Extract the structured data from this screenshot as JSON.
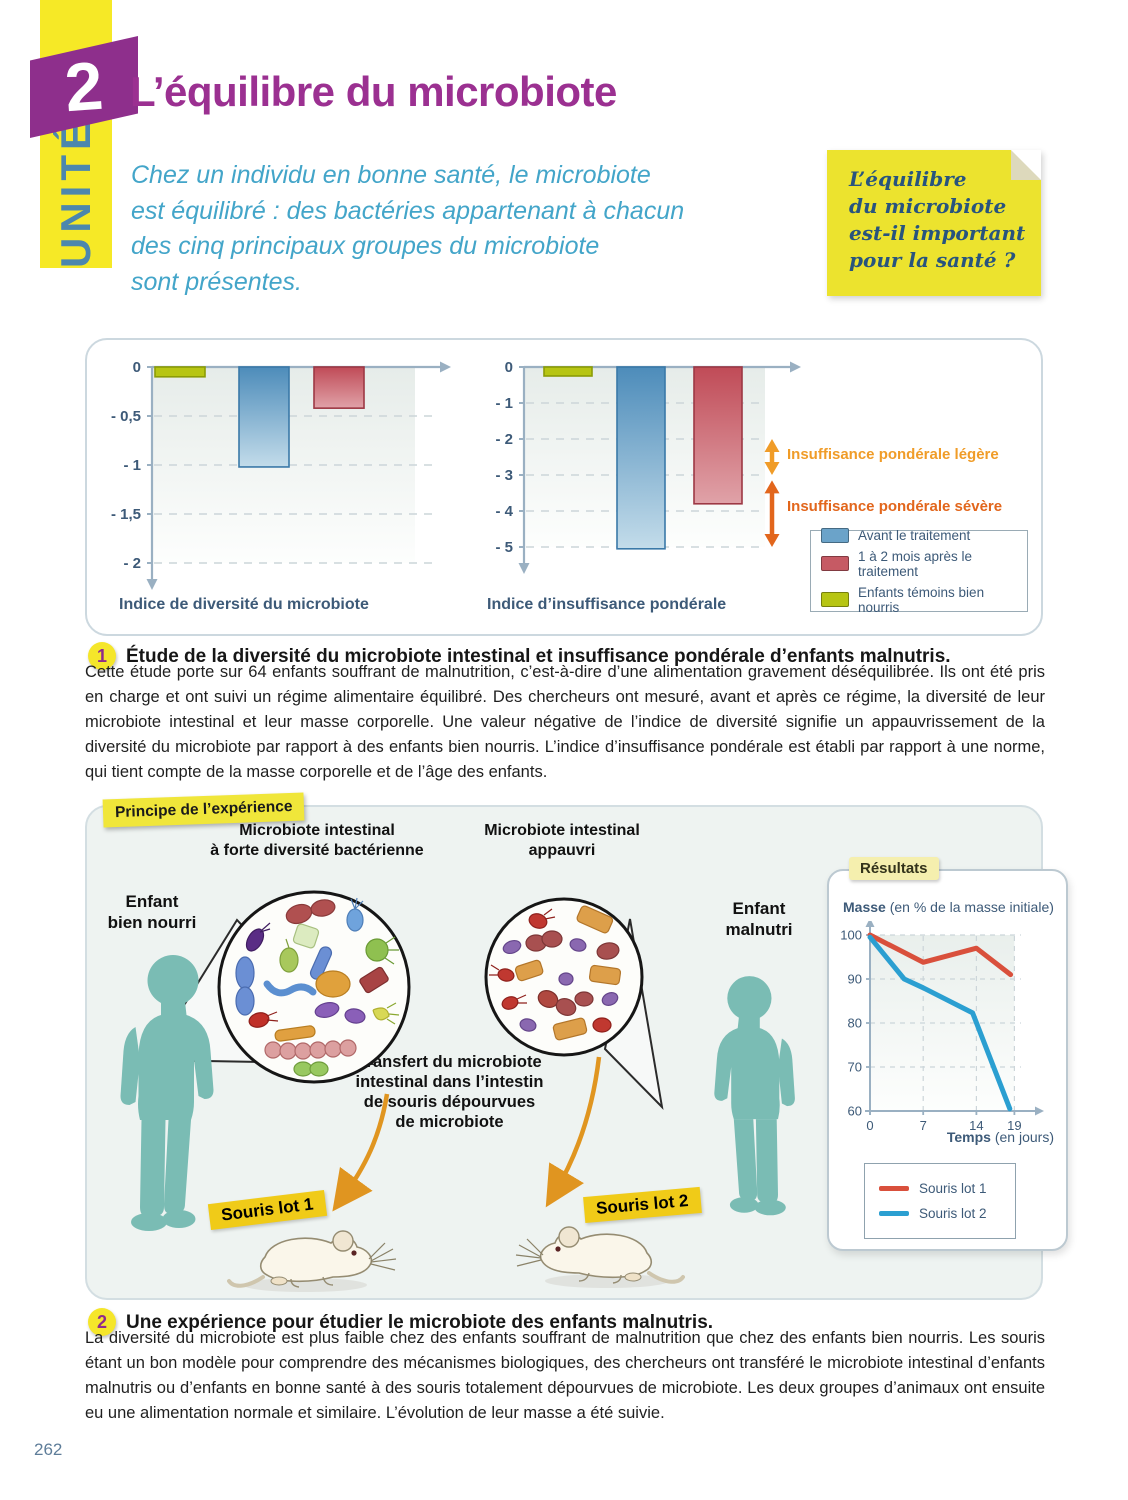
{
  "page": {
    "number": "262"
  },
  "header": {
    "unit_label": "UNITÉ",
    "unit_number": "2",
    "title": "L’équilibre du microbiote",
    "intro": "Chez un individu en bonne santé, le microbiote\nest équilibré : des bactéries appartenant à chacun\ndes cinq principaux groupes du microbiote\nsont présentes.",
    "sticky_note": "L’équilibre\ndu microbiote\nest-il important\npour la santé ?"
  },
  "legend": {
    "items": [
      {
        "label": "Avant le traitement",
        "color": "#6ba3c9"
      },
      {
        "label": "1 à 2 mois après le traitement",
        "color": "#c65a64"
      },
      {
        "label": "Enfants témoins bien nourris",
        "color": "#b7c513"
      }
    ]
  },
  "chart_data": [
    {
      "id": "diversity",
      "type": "bar",
      "title": "Indice de diversité du microbiote",
      "ylim": [
        -2,
        0
      ],
      "ytick_step": 0.5,
      "grid": true,
      "bars": [
        {
          "name": "Enfants témoins bien nourris",
          "value": -0.1,
          "color_key": "green"
        },
        {
          "name": "Avant le traitement",
          "value": -1.02,
          "color_key": "blue"
        },
        {
          "name": "1 à 2 mois après le traitement",
          "value": -0.42,
          "color_key": "red"
        }
      ]
    },
    {
      "id": "underweight",
      "type": "bar",
      "title": "Indice d’insuffisance pondérale",
      "ylim": [
        -5,
        0
      ],
      "ytick_step": 1,
      "grid": true,
      "bars": [
        {
          "name": "Enfants témoins bien nourris",
          "value": -0.25,
          "color_key": "green"
        },
        {
          "name": "Avant le traitement",
          "value": -5.05,
          "color_key": "blue"
        },
        {
          "name": "1 à 2 mois après le traitement",
          "value": -3.8,
          "color_key": "red"
        }
      ],
      "annotations": [
        {
          "label": "Insuffisance pondérale légère",
          "from": -2,
          "to": -3,
          "color": "#f09c28"
        },
        {
          "label": "Insuffisance pondérale sévère",
          "from": -3.15,
          "to": -5,
          "color": "#e2661c"
        }
      ]
    },
    {
      "id": "mass",
      "type": "line",
      "title_bold": "Masse",
      "title_rest": " (en % de la masse initiale)",
      "xlabel_bold": "Temps",
      "xlabel_rest": " (en jours)",
      "ylim": [
        60,
        100
      ],
      "yticks": [
        60,
        70,
        80,
        90,
        100
      ],
      "xticks": [
        0,
        7,
        14,
        19
      ],
      "grid": true,
      "legend_position": "below",
      "series": [
        {
          "name": "Souris lot 1",
          "color": "#d9503c",
          "points": [
            [
              0,
              100
            ],
            [
              7,
              93.8
            ],
            [
              14,
              97
            ],
            [
              18.5,
              91
            ]
          ]
        },
        {
          "name": "Souris lot 2",
          "color": "#2b9fd1",
          "points": [
            [
              0,
              99.5
            ],
            [
              4.5,
              90
            ],
            [
              7,
              88
            ],
            [
              13.5,
              82.3
            ],
            [
              18.4,
              60.5
            ]
          ]
        }
      ]
    }
  ],
  "sections": [
    {
      "number": "1",
      "title": "Étude de la diversité du microbiote intestinal et insuffisance pondérale d’enfants malnutris.",
      "body": "Cette étude porte sur 64 enfants souffrant de malnutrition, c’est-à-dire d’une alimentation gravement déséquilibrée. Ils ont été pris en charge et ont suivi un régime alimentaire équilibré. Des chercheurs ont mesuré, avant et après ce régime, la diversité de leur microbiote intestinal et leur masse corporelle. Une valeur négative de l’indice de diversité signifie un appauvrissement de la diversité du microbiote par rapport à des enfants bien nourris. L’indice d’insuffisance pondérale est établi par rapport à une norme, qui tient compte de la masse corporelle et de l’âge des enfants."
    },
    {
      "number": "2",
      "title": "Une expérience pour étudier le microbiote des enfants malnutris.",
      "body": "La diversité du microbiote est plus faible chez des enfants souffrant de malnutrition que chez des enfants bien nourris. Les souris étant un bon modèle pour comprendre des mécanismes biologiques, des chercheurs ont transféré le microbiote intestinal d’enfants malnutris ou d’enfants en bonne santé à des souris totalement dépourvues de microbiote. Les deux groupes d’animaux ont ensuite eu une alimentation normale et similaire. L’évolution de leur masse a été suivie."
    }
  ],
  "experiment": {
    "tab": "Principe de l’expérience",
    "results_tab": "Résultats",
    "labels": {
      "microbiota_rich": "Microbiote intestinal\nà forte diversité bactérienne",
      "microbiota_poor": "Microbiote intestinal\nappauvri",
      "child_healthy": "Enfant\nbien nourri",
      "child_malnourished": "Enfant\nmalnutri",
      "transfer": "Transfert du microbiote\nintestinal dans l’intestin\nde souris dépourvues\nde microbiote",
      "mice_group1": "Souris lot 1",
      "mice_group2": "Souris lot 2"
    }
  },
  "colors": {
    "brand_purple": "#9b3091",
    "intro_teal": "#43a5c9",
    "unit_yellow": "#f6e926",
    "sticky_yellow": "#ece32e",
    "silhouette_teal": "#7abcb4",
    "axis": "#9ab0c2",
    "tick_text": "#3d5a78",
    "orange_light": "#f09c28",
    "orange_dark": "#e2661c"
  }
}
